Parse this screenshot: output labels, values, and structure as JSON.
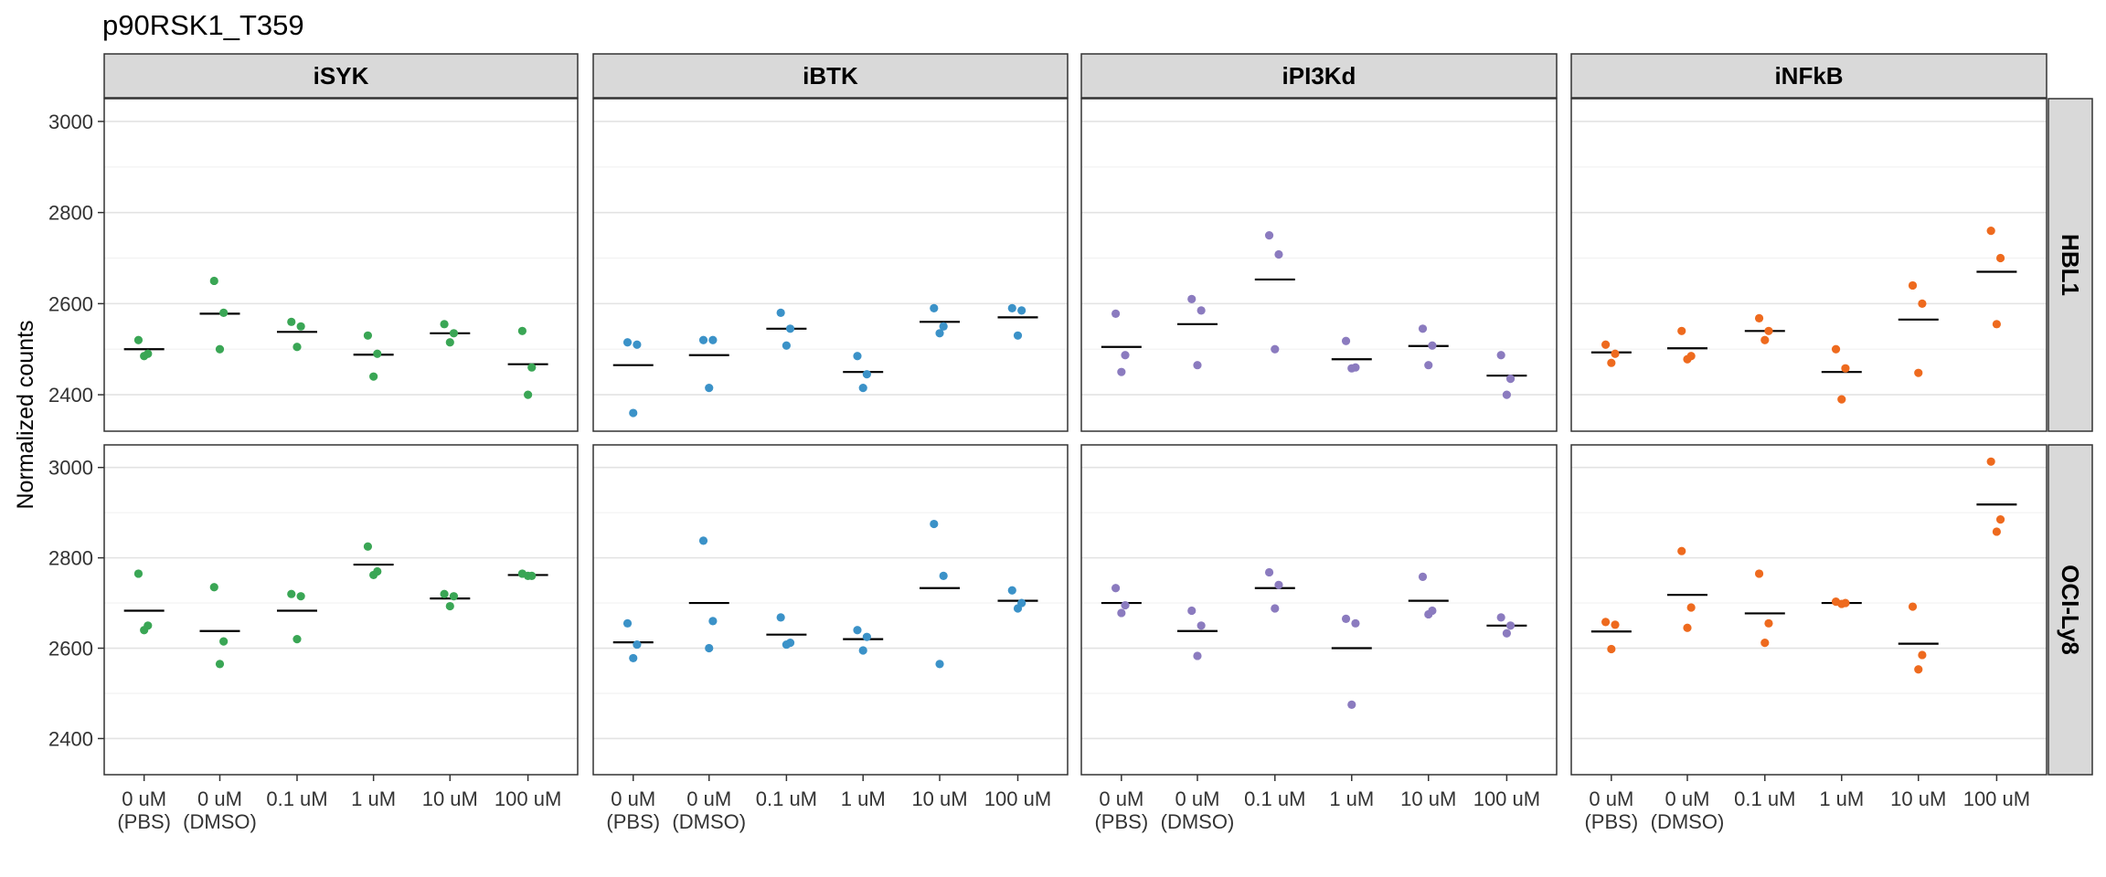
{
  "chart_data": {
    "type": "scatter",
    "title": "p90RSK1_T359",
    "ylabel": "Normalized counts",
    "xlabel": "",
    "ylim": [
      2320,
      3050
    ],
    "yticks": [
      2400,
      2600,
      2800,
      3000
    ],
    "grid": true,
    "legend": "none",
    "categories": [
      {
        "line1": "0 uM",
        "line2": "(PBS)"
      },
      {
        "line1": "0 uM",
        "line2": "(DMSO)"
      },
      {
        "line1": "0.1 uM",
        "line2": ""
      },
      {
        "line1": "1 uM",
        "line2": ""
      },
      {
        "line1": "10 uM",
        "line2": ""
      },
      {
        "line1": "100 uM",
        "line2": ""
      }
    ],
    "columns": [
      {
        "label": "iSYK",
        "color": "#3aa655"
      },
      {
        "label": "iBTK",
        "color": "#3b92c8"
      },
      {
        "label": "iPI3Kd",
        "color": "#8b7bbf"
      },
      {
        "label": "iNFkB",
        "color": "#ee6a1e"
      }
    ],
    "rows": [
      {
        "label": "HBL1"
      },
      {
        "label": "OCI-Ly8"
      }
    ],
    "panels": [
      {
        "row": 0,
        "col": 0,
        "points": [
          [
            2520,
            2490,
            2485
          ],
          [
            2650,
            2580,
            2500
          ],
          [
            2560,
            2550,
            2505
          ],
          [
            2530,
            2490,
            2440
          ],
          [
            2555,
            2535,
            2515
          ],
          [
            2540,
            2460,
            2400
          ]
        ],
        "means": [
          2500,
          2578,
          2538,
          2488,
          2535,
          2467
        ]
      },
      {
        "row": 0,
        "col": 1,
        "points": [
          [
            2515,
            2510,
            2360
          ],
          [
            2520,
            2520,
            2415
          ],
          [
            2580,
            2545,
            2508
          ],
          [
            2485,
            2445,
            2415
          ],
          [
            2590,
            2550,
            2535
          ],
          [
            2590,
            2585,
            2530
          ]
        ],
        "means": [
          2465,
          2487,
          2545,
          2450,
          2560,
          2570
        ]
      },
      {
        "row": 0,
        "col": 2,
        "points": [
          [
            2578,
            2487,
            2450
          ],
          [
            2610,
            2585,
            2465
          ],
          [
            2750,
            2708,
            2500
          ],
          [
            2518,
            2460,
            2458
          ],
          [
            2545,
            2508,
            2465
          ],
          [
            2487,
            2435,
            2400
          ]
        ],
        "means": [
          2505,
          2555,
          2653,
          2478,
          2507,
          2442
        ]
      },
      {
        "row": 0,
        "col": 3,
        "points": [
          [
            2510,
            2490,
            2470
          ],
          [
            2540,
            2485,
            2478
          ],
          [
            2568,
            2540,
            2520
          ],
          [
            2500,
            2458,
            2390
          ],
          [
            2640,
            2600,
            2448
          ],
          [
            2760,
            2700,
            2555
          ]
        ],
        "means": [
          2493,
          2502,
          2540,
          2450,
          2565,
          2670
        ]
      },
      {
        "row": 1,
        "col": 0,
        "points": [
          [
            2765,
            2650,
            2640
          ],
          [
            2735,
            2615,
            2565
          ],
          [
            2720,
            2715,
            2620
          ],
          [
            2825,
            2770,
            2762
          ],
          [
            2720,
            2715,
            2693
          ],
          [
            2765,
            2760,
            2760
          ]
        ],
        "means": [
          2683,
          2638,
          2683,
          2785,
          2710,
          2762
        ]
      },
      {
        "row": 1,
        "col": 1,
        "points": [
          [
            2655,
            2608,
            2578
          ],
          [
            2838,
            2660,
            2600
          ],
          [
            2668,
            2612,
            2608
          ],
          [
            2640,
            2625,
            2595
          ],
          [
            2875,
            2760,
            2565
          ],
          [
            2728,
            2700,
            2688
          ]
        ],
        "means": [
          2613,
          2700,
          2630,
          2620,
          2733,
          2705
        ]
      },
      {
        "row": 1,
        "col": 2,
        "points": [
          [
            2733,
            2695,
            2678
          ],
          [
            2683,
            2650,
            2583
          ],
          [
            2768,
            2740,
            2688
          ],
          [
            2665,
            2655,
            2475
          ],
          [
            2758,
            2683,
            2675
          ],
          [
            2668,
            2650,
            2633
          ]
        ],
        "means": [
          2700,
          2638,
          2733,
          2600,
          2705,
          2650
        ]
      },
      {
        "row": 1,
        "col": 3,
        "points": [
          [
            2658,
            2652,
            2598
          ],
          [
            2815,
            2690,
            2645
          ],
          [
            2765,
            2655,
            2612
          ],
          [
            2703,
            2700,
            2698
          ],
          [
            2692,
            2585,
            2553
          ],
          [
            3013,
            2885,
            2858
          ]
        ],
        "means": [
          2637,
          2718,
          2677,
          2700,
          2610,
          2918
        ]
      }
    ]
  }
}
